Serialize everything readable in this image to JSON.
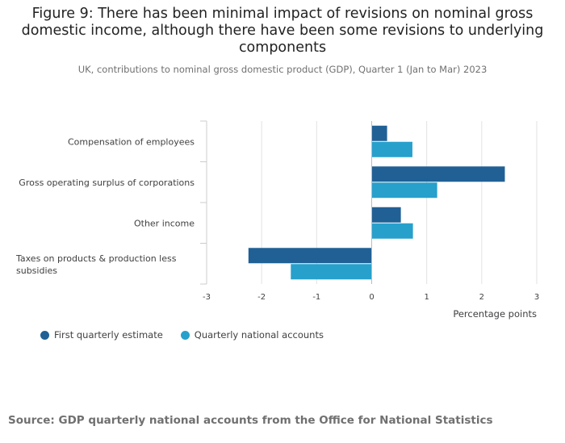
{
  "figure": {
    "title": "Figure 9: There has been minimal impact of revisions on nominal gross domestic income, although there have been some revisions to underlying components",
    "subtitle": "UK, contributions to nominal gross domestic product (GDP), Quarter 1 (Jan to Mar) 2023",
    "source": "Source: GDP quarterly national accounts from the Office for National Statistics"
  },
  "chart_data": {
    "type": "bar",
    "orientation": "horizontal",
    "categories": [
      "Compensation of employees",
      "Gross operating surplus of corporations",
      "Other income",
      "Taxes on products & production less subsidies"
    ],
    "series": [
      {
        "name": "First quarterly estimate",
        "values": [
          0.28,
          2.42,
          0.53,
          -2.24
        ],
        "color": "#206095"
      },
      {
        "name": "Quarterly national accounts",
        "values": [
          0.74,
          1.19,
          0.75,
          -1.47
        ],
        "color": "#27a0cc"
      }
    ],
    "xlabel": "Percentage points",
    "ylabel": "",
    "xlim": [
      -3,
      3
    ],
    "xticks": [
      -3,
      -2,
      -1,
      0,
      1,
      2,
      3
    ],
    "grid": true,
    "legend_position": "bottom-left"
  }
}
